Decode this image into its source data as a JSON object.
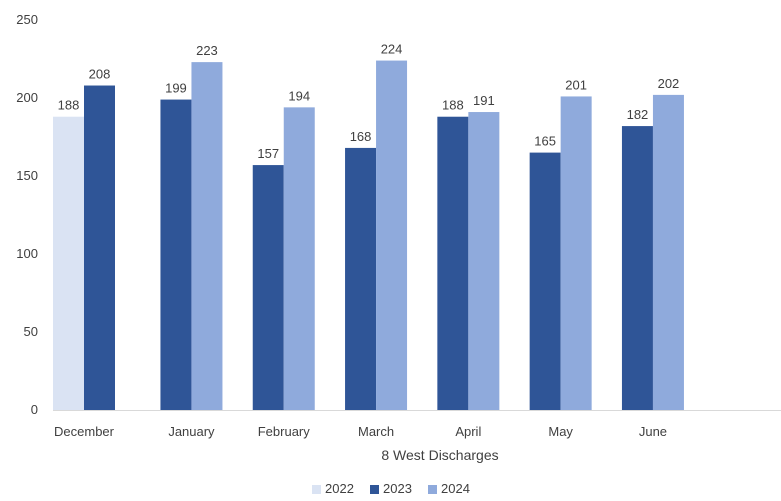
{
  "chart_data": {
    "type": "bar",
    "categories": [
      "December",
      "January",
      "February",
      "March",
      "April",
      "May",
      "June"
    ],
    "series": [
      {
        "name": "2022",
        "color": "#dae3f3",
        "values": [
          188,
          null,
          null,
          null,
          null,
          null,
          null
        ]
      },
      {
        "name": "2023",
        "color": "#2f5597",
        "values": [
          208,
          199,
          157,
          168,
          188,
          165,
          182
        ]
      },
      {
        "name": "2024",
        "color": "#8faadc",
        "values": [
          null,
          223,
          194,
          224,
          191,
          201,
          202
        ]
      }
    ],
    "xlabel": "8 West Discharges",
    "ylabel": "",
    "ylim": [
      0,
      250
    ],
    "yticks": [
      0,
      50,
      100,
      150,
      200,
      250
    ],
    "grid": false,
    "legend_position": "bottom",
    "data_labels": true
  }
}
